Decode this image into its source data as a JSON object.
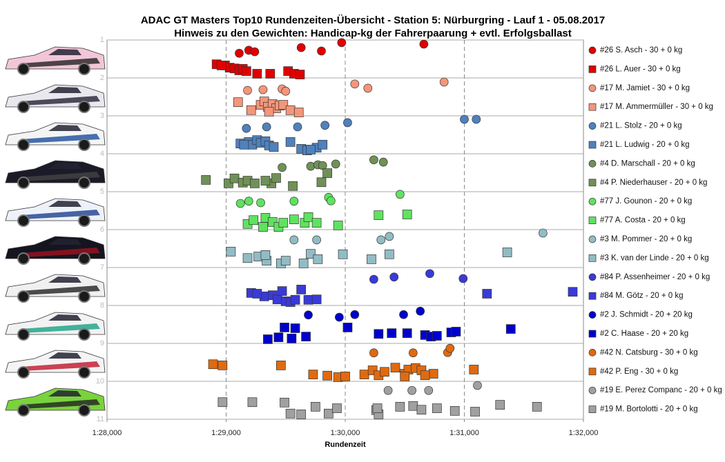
{
  "chart_data": {
    "type": "scatter",
    "title": "ADAC  GT Masters  Top10  Rundenzeiten-Übersicht  - Station  5: Nürburgring  - Lauf 1 - 05.08.2017",
    "subtitle": "Hinweis  zu den Gewichten:  Handicap-kg  der Fahrerpaarung  + evtl. Erfolgsballast",
    "x_label": "Rundenzeit",
    "xlim": [
      88,
      92
    ],
    "xticks": [
      {
        "value": 88,
        "label": "1:28,000"
      },
      {
        "value": 89,
        "label": "1:29,000"
      },
      {
        "value": 90,
        "label": "1:30,000"
      },
      {
        "value": 91,
        "label": "1:31,000"
      },
      {
        "value": 92,
        "label": "1:32,000"
      }
    ],
    "ylim": [
      1,
      11
    ],
    "y_reversed": true,
    "yticks": [
      1,
      2,
      3,
      4,
      5,
      6,
      7,
      8,
      9,
      10,
      11
    ],
    "grid": true,
    "legend": "right",
    "series": [
      {
        "name": "#26 S. Asch - 30 + 0 kg",
        "color": "#e00000",
        "marker": "circle",
        "x": [
          89.11,
          89.19,
          89.24,
          89.63,
          89.8,
          89.97,
          90.66
        ],
        "y": [
          1.35,
          1.27,
          1.31,
          1.2,
          1.29,
          1.07,
          1.11
        ]
      },
      {
        "name": "#26 L. Auer - 30 + 0 kg",
        "color": "#e00000",
        "marker": "square",
        "x": [
          88.92,
          88.99,
          89.03,
          89.07,
          89.11,
          89.14,
          89.17,
          89.26,
          89.37,
          89.52,
          89.57,
          89.62,
          88.96
        ],
        "y": [
          1.64,
          1.67,
          1.73,
          1.75,
          1.8,
          1.76,
          1.82,
          1.89,
          1.89,
          1.82,
          1.89,
          1.91,
          1.67
        ]
      },
      {
        "name": "#17 M. Jamiet - 30 + 0 kg",
        "color": "#f4967a",
        "marker": "circle",
        "x": [
          89.18,
          89.31,
          89.47,
          89.5,
          90.08,
          90.19,
          90.83
        ],
        "y": [
          2.33,
          2.31,
          2.29,
          2.35,
          2.16,
          2.27,
          2.11
        ]
      },
      {
        "name": "#17 M. Ammermüller - 30 + 0 kg",
        "color": "#f4967a",
        "marker": "square",
        "x": [
          89.1,
          89.21,
          89.29,
          89.32,
          89.35,
          89.39,
          89.42,
          89.45,
          89.48,
          89.54,
          89.61,
          89.36
        ],
        "y": [
          2.64,
          2.85,
          2.71,
          2.62,
          2.76,
          2.69,
          2.8,
          2.73,
          2.71,
          2.85,
          2.91,
          2.89
        ]
      },
      {
        "name": "#21 L. Stolz - 20 + 0 kg",
        "color": "#4f81bd",
        "marker": "circle",
        "x": [
          89.17,
          89.34,
          89.6,
          89.83,
          90.02,
          91.0,
          91.1
        ],
        "y": [
          3.33,
          3.29,
          3.29,
          3.25,
          3.18,
          3.09,
          3.09
        ]
      },
      {
        "name": "#21 L. Ludwig - 20 + 0 kg",
        "color": "#4f81bd",
        "marker": "square",
        "x": [
          89.12,
          89.19,
          89.22,
          89.26,
          89.29,
          89.33,
          89.36,
          89.4,
          89.54,
          89.63,
          89.68,
          89.76,
          89.81,
          89.71,
          89.15
        ],
        "y": [
          3.73,
          3.69,
          3.76,
          3.64,
          3.71,
          3.67,
          3.78,
          3.82,
          3.69,
          3.87,
          3.91,
          3.84,
          3.76,
          3.89,
          3.76
        ]
      },
      {
        "name": "#4 D. Marschall - 20 + 0 kg",
        "color": "#6f9156",
        "marker": "circle",
        "x": [
          89.47,
          89.71,
          89.77,
          89.81,
          89.92,
          90.24,
          90.32
        ],
        "y": [
          4.36,
          4.33,
          4.29,
          4.31,
          4.27,
          4.16,
          4.22
        ]
      },
      {
        "name": "#4 P. Niederhauser - 20 + 0 kg",
        "color": "#6f9156",
        "marker": "square",
        "x": [
          88.83,
          89.02,
          89.07,
          89.14,
          89.18,
          89.24,
          89.38,
          89.42,
          89.56,
          89.8,
          89.85,
          89.33
        ],
        "y": [
          4.69,
          4.78,
          4.65,
          4.76,
          4.71,
          4.78,
          4.78,
          4.64,
          4.85,
          4.75,
          4.51,
          4.71
        ]
      },
      {
        "name": "#77 J. Gounon - 20 + 0 kg",
        "color": "#5fe35f",
        "marker": "circle",
        "x": [
          89.12,
          89.19,
          89.29,
          89.57,
          89.86,
          89.88,
          90.46
        ],
        "y": [
          5.31,
          5.25,
          5.29,
          5.25,
          5.15,
          5.24,
          5.07
        ]
      },
      {
        "name": "#77 A. Costa - 20 + 0 kg",
        "color": "#5fe35f",
        "marker": "square",
        "x": [
          89.18,
          89.23,
          89.33,
          89.39,
          89.44,
          89.48,
          89.57,
          89.66,
          89.69,
          89.76,
          89.94,
          90.28,
          90.52,
          89.31
        ],
        "y": [
          5.85,
          5.75,
          5.69,
          5.8,
          5.93,
          5.82,
          5.73,
          5.82,
          5.67,
          5.82,
          5.89,
          5.62,
          5.6,
          5.93
        ]
      },
      {
        "name": "#3 M. Pommer - 20 + 0 kg",
        "color": "#92bcc4",
        "marker": "circle",
        "x": [
          89.57,
          89.76,
          90.3,
          90.37,
          91.66
        ],
        "y": [
          6.27,
          6.27,
          6.27,
          6.18,
          6.09
        ]
      },
      {
        "name": "#3 K. van der Linde - 20 + 0 kg",
        "color": "#92bcc4",
        "marker": "square",
        "x": [
          89.04,
          89.18,
          89.27,
          89.34,
          89.46,
          89.5,
          89.65,
          89.71,
          89.77,
          89.98,
          90.22,
          90.37,
          91.36,
          89.33
        ],
        "y": [
          6.58,
          6.75,
          6.71,
          6.82,
          6.89,
          6.82,
          6.89,
          6.64,
          6.78,
          6.65,
          6.78,
          6.65,
          6.6,
          6.67
        ]
      },
      {
        "name": "#84 P. Assenheimer - 20 + 0 kg",
        "color": "#3a3ad8",
        "marker": "circle",
        "x": [
          90.24,
          90.41,
          90.71,
          90.99
        ],
        "y": [
          7.31,
          7.25,
          7.16,
          7.29
        ]
      },
      {
        "name": "#84 M. Götz - 20 + 0 kg",
        "color": "#3a3ad8",
        "marker": "square",
        "x": [
          89.21,
          89.32,
          89.39,
          89.43,
          89.47,
          89.5,
          89.54,
          89.58,
          89.63,
          89.69,
          89.76,
          91.19,
          91.91,
          89.26
        ],
        "y": [
          7.67,
          7.76,
          7.73,
          7.84,
          7.62,
          7.89,
          7.91,
          7.85,
          7.58,
          7.85,
          7.84,
          7.69,
          7.64,
          7.69
        ]
      },
      {
        "name": "#2 J. Schmidt - 20 + 20 kg",
        "color": "#0000cc",
        "marker": "circle",
        "x": [
          89.69,
          89.95,
          90.08,
          90.49,
          90.63
        ],
        "y": [
          8.25,
          8.31,
          8.24,
          8.24,
          8.15
        ]
      },
      {
        "name": "#2 C. Haase - 20 + 20 kg",
        "color": "#0000cc",
        "marker": "square",
        "x": [
          89.35,
          89.44,
          89.49,
          89.55,
          89.58,
          89.67,
          90.02,
          90.28,
          90.39,
          90.52,
          90.67,
          90.72,
          90.77,
          90.89,
          90.93,
          91.39
        ],
        "y": [
          8.89,
          8.84,
          8.58,
          8.87,
          8.6,
          8.82,
          8.58,
          8.75,
          8.73,
          8.73,
          8.78,
          8.82,
          8.8,
          8.71,
          8.69,
          8.62
        ]
      },
      {
        "name": "#42 N. Catsburg - 30 + 0 kg",
        "color": "#e06a10",
        "marker": "circle",
        "x": [
          90.24,
          90.57,
          90.86,
          90.88
        ],
        "y": [
          9.25,
          9.25,
          9.24,
          9.13
        ]
      },
      {
        "name": "#42 P. Eng - 30 + 0 kg",
        "color": "#e06a10",
        "marker": "square",
        "x": [
          88.89,
          88.97,
          89.46,
          89.73,
          89.85,
          89.94,
          90.0,
          90.16,
          90.23,
          90.28,
          90.33,
          90.42,
          90.5,
          90.53,
          90.59,
          90.64,
          90.74,
          91.08,
          90.5,
          90.67
        ],
        "y": [
          9.55,
          9.58,
          9.58,
          9.82,
          9.85,
          9.89,
          9.87,
          9.82,
          9.71,
          9.84,
          9.75,
          9.64,
          9.8,
          9.69,
          9.65,
          9.71,
          9.8,
          9.69,
          9.87,
          9.84
        ]
      },
      {
        "name": "#19 E. Perez Companc - 20 + 0 kg",
        "color": "#a0a0a0",
        "marker": "circle",
        "x": [
          90.36,
          90.56,
          90.7,
          91.11
        ],
        "y": [
          10.24,
          10.24,
          10.24,
          10.11
        ]
      },
      {
        "name": "#19 M. Bortolotti - 20 + 0 kg",
        "color": "#a0a0a0",
        "marker": "square",
        "x": [
          88.97,
          89.22,
          89.49,
          89.54,
          89.63,
          89.75,
          89.86,
          89.93,
          90.26,
          90.28,
          90.46,
          90.57,
          90.64,
          90.77,
          90.92,
          91.09,
          91.3,
          91.61,
          90.27
        ],
        "y": [
          10.55,
          10.55,
          10.56,
          10.85,
          10.87,
          10.67,
          10.85,
          10.71,
          10.76,
          10.87,
          10.67,
          10.65,
          10.75,
          10.71,
          10.78,
          10.8,
          10.62,
          10.67,
          10.71
        ]
      }
    ]
  }
}
